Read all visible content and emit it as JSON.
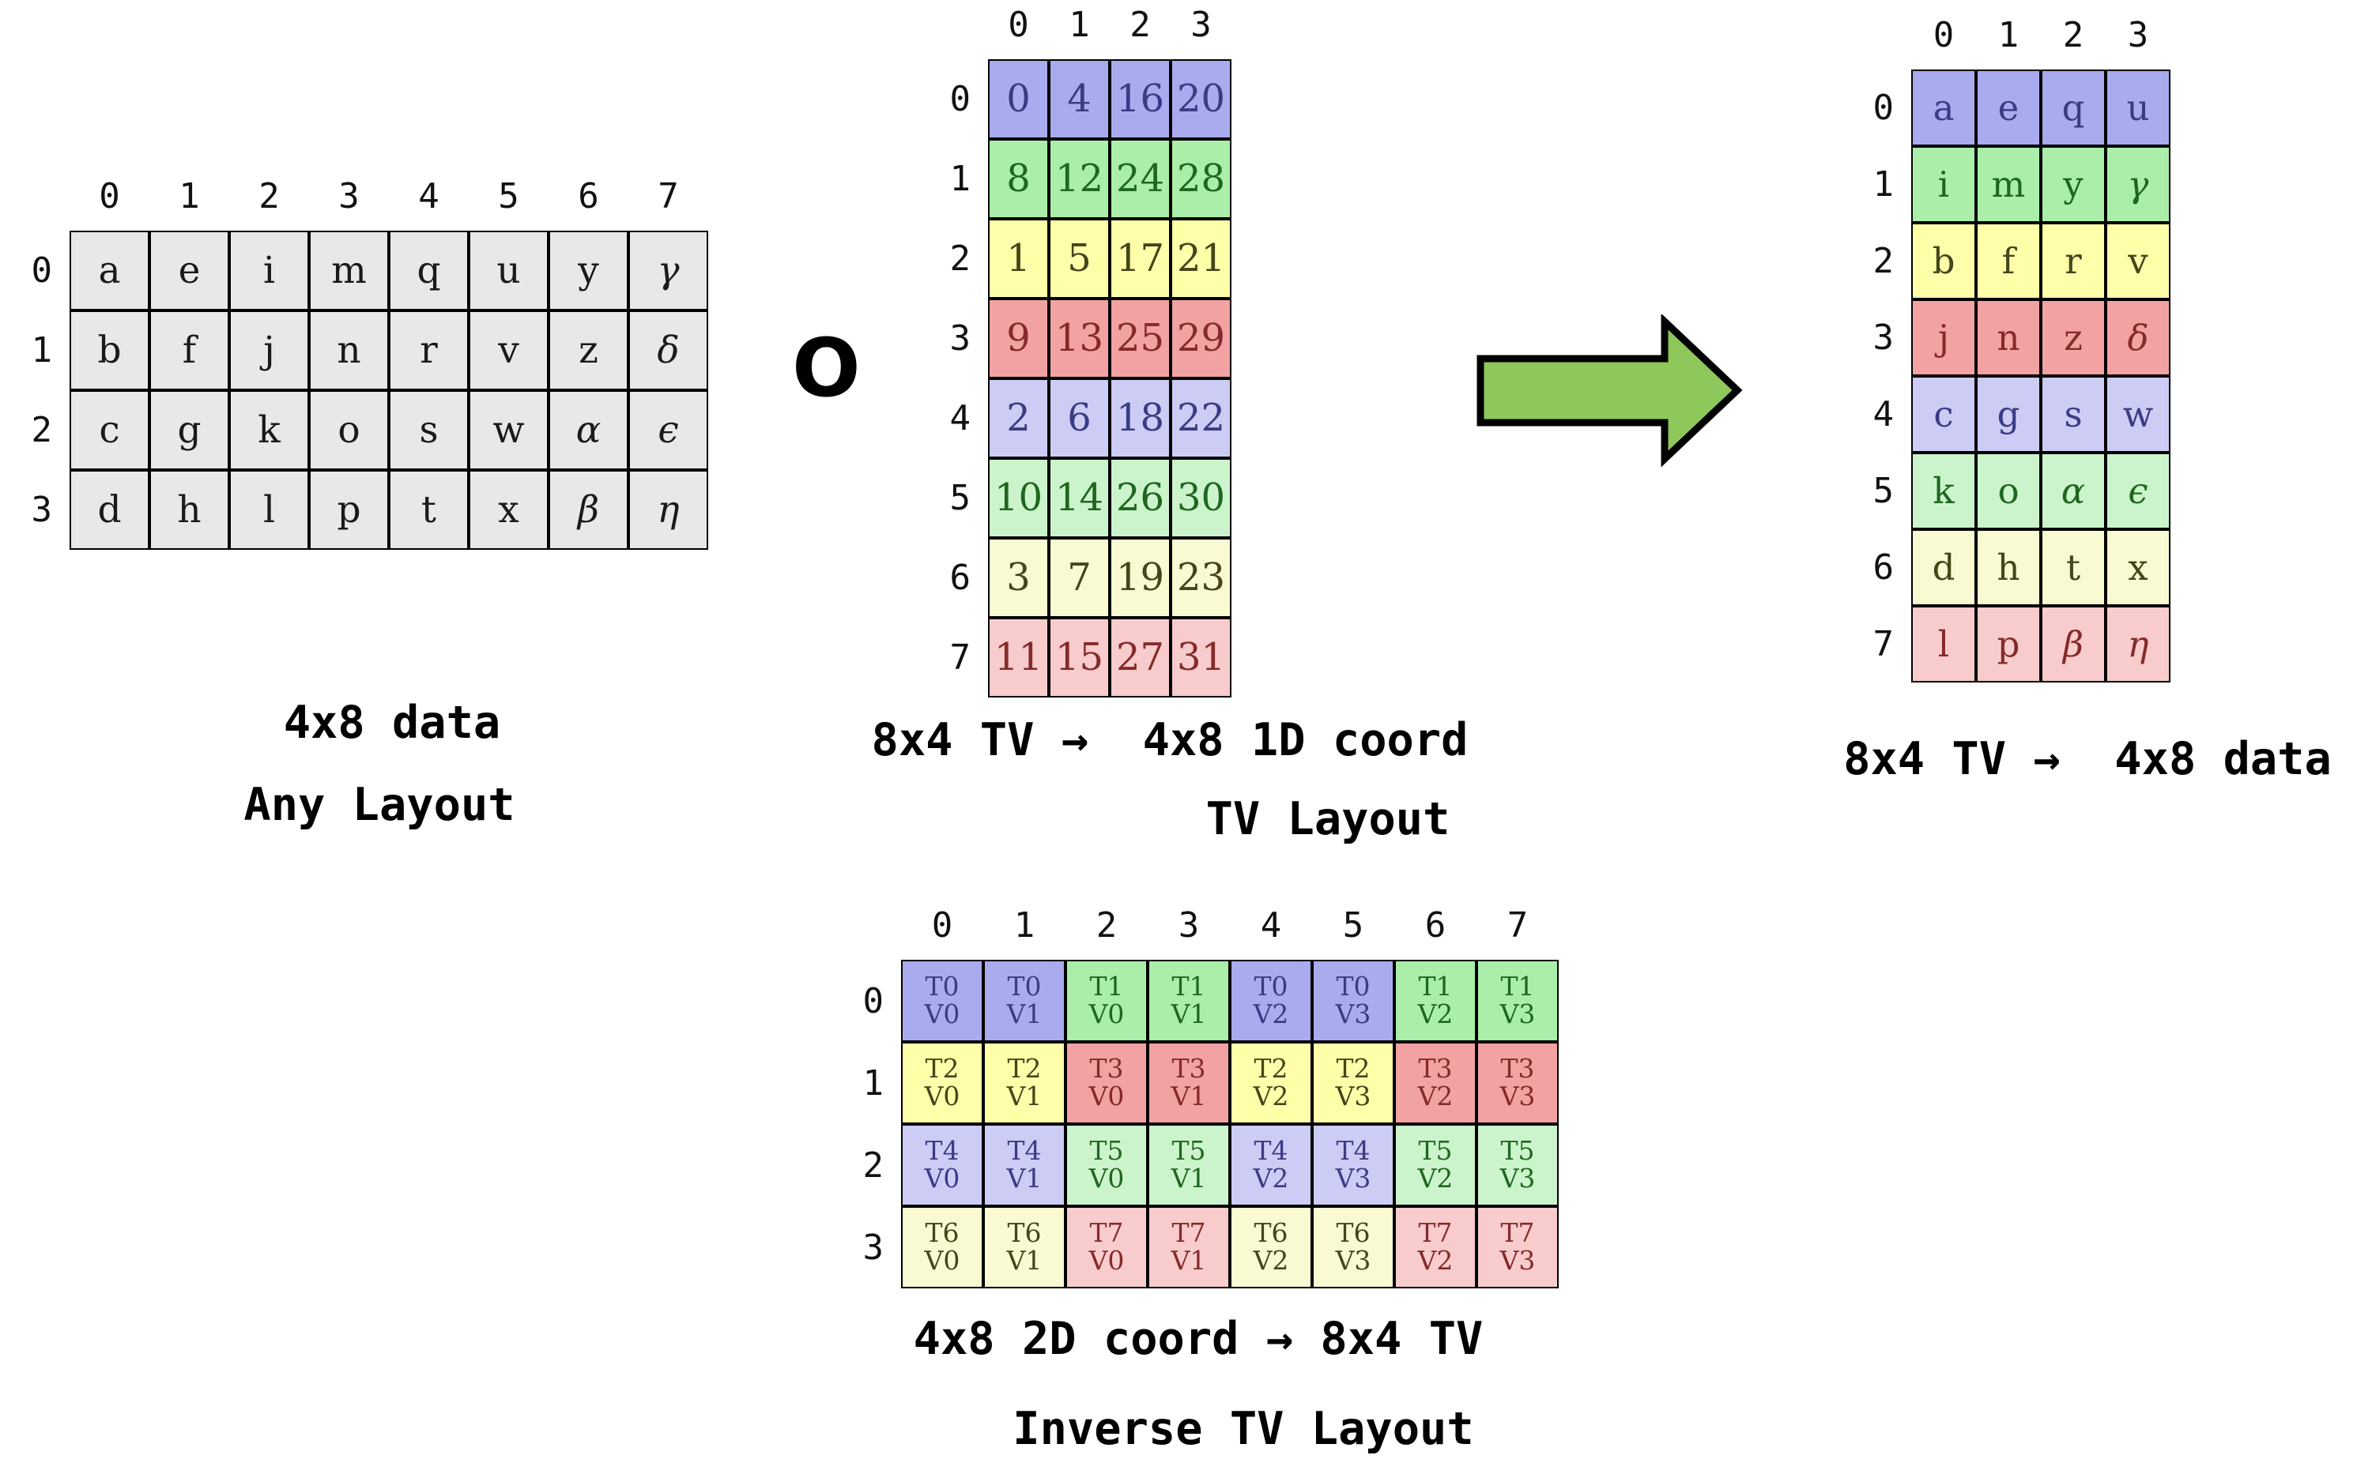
{
  "labels": {
    "compose_symbol": "O",
    "data_layout_caption_line1": "4x8 data",
    "data_layout_caption_line2": "Any Layout",
    "tv_layout_caption_line1": "8x4 TV →  4x8 1D coord",
    "tv_layout_caption_line2": "TV Layout",
    "tv_data_caption": "8x4 TV →  4x8 data",
    "inverse_tv_caption_line1": "4x8 2D coord → 8x4 TV",
    "inverse_tv_caption_line2": "Inverse TV Layout"
  },
  "palette": {
    "gray": {
      "bg": "#e8e8e8",
      "text": "#1a1a1a"
    },
    "blue": {
      "bg": "#aaaaee",
      "text": "#3b3b85"
    },
    "green": {
      "bg": "#aaeeaa",
      "text": "#1f671f"
    },
    "yellow": {
      "bg": "#ffffaa",
      "text": "#45451a"
    },
    "red": {
      "bg": "#f2a2a2",
      "text": "#852a2a"
    },
    "blue_light": {
      "bg": "#ccccf4",
      "text": "#3b3b85"
    },
    "green_light": {
      "bg": "#ccf4cc",
      "text": "#1f671f"
    },
    "yellow_light": {
      "bg": "#fafad2",
      "text": "#45451a"
    },
    "red_light": {
      "bg": "#f8cccc",
      "text": "#852a2a"
    }
  },
  "arrow_color": "#8ec85a",
  "tables": [
    {
      "id": "data-layout",
      "col_headers": [
        "0",
        "1",
        "2",
        "3",
        "4",
        "5",
        "6",
        "7"
      ],
      "row_headers": [
        "0",
        "1",
        "2",
        "3"
      ],
      "rows": [
        [
          {
            "text": "a",
            "color": "gray"
          },
          {
            "text": "e",
            "color": "gray"
          },
          {
            "text": "i",
            "color": "gray"
          },
          {
            "text": "m",
            "color": "gray"
          },
          {
            "text": "q",
            "color": "gray"
          },
          {
            "text": "u",
            "color": "gray"
          },
          {
            "text": "y",
            "color": "gray"
          },
          {
            "text": "γ",
            "color": "gray"
          }
        ],
        [
          {
            "text": "b",
            "color": "gray"
          },
          {
            "text": "f",
            "color": "gray"
          },
          {
            "text": "j",
            "color": "gray"
          },
          {
            "text": "n",
            "color": "gray"
          },
          {
            "text": "r",
            "color": "gray"
          },
          {
            "text": "v",
            "color": "gray"
          },
          {
            "text": "z",
            "color": "gray"
          },
          {
            "text": "δ",
            "color": "gray"
          }
        ],
        [
          {
            "text": "c",
            "color": "gray"
          },
          {
            "text": "g",
            "color": "gray"
          },
          {
            "text": "k",
            "color": "gray"
          },
          {
            "text": "o",
            "color": "gray"
          },
          {
            "text": "s",
            "color": "gray"
          },
          {
            "text": "w",
            "color": "gray"
          },
          {
            "text": "α",
            "color": "gray"
          },
          {
            "text": "ϵ",
            "color": "gray"
          }
        ],
        [
          {
            "text": "d",
            "color": "gray"
          },
          {
            "text": "h",
            "color": "gray"
          },
          {
            "text": "l",
            "color": "gray"
          },
          {
            "text": "p",
            "color": "gray"
          },
          {
            "text": "t",
            "color": "gray"
          },
          {
            "text": "x",
            "color": "gray"
          },
          {
            "text": "β",
            "color": "gray"
          },
          {
            "text": "η",
            "color": "gray"
          }
        ]
      ]
    },
    {
      "id": "tv-layout",
      "col_headers": [
        "0",
        "1",
        "2",
        "3"
      ],
      "row_headers": [
        "0",
        "1",
        "2",
        "3",
        "4",
        "5",
        "6",
        "7"
      ],
      "rows": [
        [
          {
            "text": "0",
            "color": "blue"
          },
          {
            "text": "4",
            "color": "blue"
          },
          {
            "text": "16",
            "color": "blue"
          },
          {
            "text": "20",
            "color": "blue"
          }
        ],
        [
          {
            "text": "8",
            "color": "green"
          },
          {
            "text": "12",
            "color": "green"
          },
          {
            "text": "24",
            "color": "green"
          },
          {
            "text": "28",
            "color": "green"
          }
        ],
        [
          {
            "text": "1",
            "color": "yellow"
          },
          {
            "text": "5",
            "color": "yellow"
          },
          {
            "text": "17",
            "color": "yellow"
          },
          {
            "text": "21",
            "color": "yellow"
          }
        ],
        [
          {
            "text": "9",
            "color": "red"
          },
          {
            "text": "13",
            "color": "red"
          },
          {
            "text": "25",
            "color": "red"
          },
          {
            "text": "29",
            "color": "red"
          }
        ],
        [
          {
            "text": "2",
            "color": "blue_light"
          },
          {
            "text": "6",
            "color": "blue_light"
          },
          {
            "text": "18",
            "color": "blue_light"
          },
          {
            "text": "22",
            "color": "blue_light"
          }
        ],
        [
          {
            "text": "10",
            "color": "green_light"
          },
          {
            "text": "14",
            "color": "green_light"
          },
          {
            "text": "26",
            "color": "green_light"
          },
          {
            "text": "30",
            "color": "green_light"
          }
        ],
        [
          {
            "text": "3",
            "color": "yellow_light"
          },
          {
            "text": "7",
            "color": "yellow_light"
          },
          {
            "text": "19",
            "color": "yellow_light"
          },
          {
            "text": "23",
            "color": "yellow_light"
          }
        ],
        [
          {
            "text": "11",
            "color": "red_light"
          },
          {
            "text": "15",
            "color": "red_light"
          },
          {
            "text": "27",
            "color": "red_light"
          },
          {
            "text": "31",
            "color": "red_light"
          }
        ]
      ]
    },
    {
      "id": "tv-data",
      "col_headers": [
        "0",
        "1",
        "2",
        "3"
      ],
      "row_headers": [
        "0",
        "1",
        "2",
        "3",
        "4",
        "5",
        "6",
        "7"
      ],
      "rows": [
        [
          {
            "text": "a",
            "color": "blue"
          },
          {
            "text": "e",
            "color": "blue"
          },
          {
            "text": "q",
            "color": "blue"
          },
          {
            "text": "u",
            "color": "blue"
          }
        ],
        [
          {
            "text": "i",
            "color": "green"
          },
          {
            "text": "m",
            "color": "green"
          },
          {
            "text": "y",
            "color": "green"
          },
          {
            "text": "γ",
            "color": "green"
          }
        ],
        [
          {
            "text": "b",
            "color": "yellow"
          },
          {
            "text": "f",
            "color": "yellow"
          },
          {
            "text": "r",
            "color": "yellow"
          },
          {
            "text": "v",
            "color": "yellow"
          }
        ],
        [
          {
            "text": "j",
            "color": "red"
          },
          {
            "text": "n",
            "color": "red"
          },
          {
            "text": "z",
            "color": "red"
          },
          {
            "text": "δ",
            "color": "red"
          }
        ],
        [
          {
            "text": "c",
            "color": "blue_light"
          },
          {
            "text": "g",
            "color": "blue_light"
          },
          {
            "text": "s",
            "color": "blue_light"
          },
          {
            "text": "w",
            "color": "blue_light"
          }
        ],
        [
          {
            "text": "k",
            "color": "green_light"
          },
          {
            "text": "o",
            "color": "green_light"
          },
          {
            "text": "α",
            "color": "green_light"
          },
          {
            "text": "ϵ",
            "color": "green_light"
          }
        ],
        [
          {
            "text": "d",
            "color": "yellow_light"
          },
          {
            "text": "h",
            "color": "yellow_light"
          },
          {
            "text": "t",
            "color": "yellow_light"
          },
          {
            "text": "x",
            "color": "yellow_light"
          }
        ],
        [
          {
            "text": "l",
            "color": "red_light"
          },
          {
            "text": "p",
            "color": "red_light"
          },
          {
            "text": "β",
            "color": "red_light"
          },
          {
            "text": "η",
            "color": "red_light"
          }
        ]
      ]
    },
    {
      "id": "inverse-tv",
      "col_headers": [
        "0",
        "1",
        "2",
        "3",
        "4",
        "5",
        "6",
        "7"
      ],
      "row_headers": [
        "0",
        "1",
        "2",
        "3"
      ],
      "rows": [
        [
          {
            "lines": [
              "T0",
              "V0"
            ],
            "color": "blue"
          },
          {
            "lines": [
              "T0",
              "V1"
            ],
            "color": "blue"
          },
          {
            "lines": [
              "T1",
              "V0"
            ],
            "color": "green"
          },
          {
            "lines": [
              "T1",
              "V1"
            ],
            "color": "green"
          },
          {
            "lines": [
              "T0",
              "V2"
            ],
            "color": "blue"
          },
          {
            "lines": [
              "T0",
              "V3"
            ],
            "color": "blue"
          },
          {
            "lines": [
              "T1",
              "V2"
            ],
            "color": "green"
          },
          {
            "lines": [
              "T1",
              "V3"
            ],
            "color": "green"
          }
        ],
        [
          {
            "lines": [
              "T2",
              "V0"
            ],
            "color": "yellow"
          },
          {
            "lines": [
              "T2",
              "V1"
            ],
            "color": "yellow"
          },
          {
            "lines": [
              "T3",
              "V0"
            ],
            "color": "red"
          },
          {
            "lines": [
              "T3",
              "V1"
            ],
            "color": "red"
          },
          {
            "lines": [
              "T2",
              "V2"
            ],
            "color": "yellow"
          },
          {
            "lines": [
              "T2",
              "V3"
            ],
            "color": "yellow"
          },
          {
            "lines": [
              "T3",
              "V2"
            ],
            "color": "red"
          },
          {
            "lines": [
              "T3",
              "V3"
            ],
            "color": "red"
          }
        ],
        [
          {
            "lines": [
              "T4",
              "V0"
            ],
            "color": "blue_light"
          },
          {
            "lines": [
              "T4",
              "V1"
            ],
            "color": "blue_light"
          },
          {
            "lines": [
              "T5",
              "V0"
            ],
            "color": "green_light"
          },
          {
            "lines": [
              "T5",
              "V1"
            ],
            "color": "green_light"
          },
          {
            "lines": [
              "T4",
              "V2"
            ],
            "color": "blue_light"
          },
          {
            "lines": [
              "T4",
              "V3"
            ],
            "color": "blue_light"
          },
          {
            "lines": [
              "T5",
              "V2"
            ],
            "color": "green_light"
          },
          {
            "lines": [
              "T5",
              "V3"
            ],
            "color": "green_light"
          }
        ],
        [
          {
            "lines": [
              "T6",
              "V0"
            ],
            "color": "yellow_light"
          },
          {
            "lines": [
              "T6",
              "V1"
            ],
            "color": "yellow_light"
          },
          {
            "lines": [
              "T7",
              "V0"
            ],
            "color": "red_light"
          },
          {
            "lines": [
              "T7",
              "V1"
            ],
            "color": "red_light"
          },
          {
            "lines": [
              "T6",
              "V2"
            ],
            "color": "yellow_light"
          },
          {
            "lines": [
              "T6",
              "V3"
            ],
            "color": "yellow_light"
          },
          {
            "lines": [
              "T7",
              "V2"
            ],
            "color": "red_light"
          },
          {
            "lines": [
              "T7",
              "V3"
            ],
            "color": "red_light"
          }
        ]
      ]
    }
  ]
}
